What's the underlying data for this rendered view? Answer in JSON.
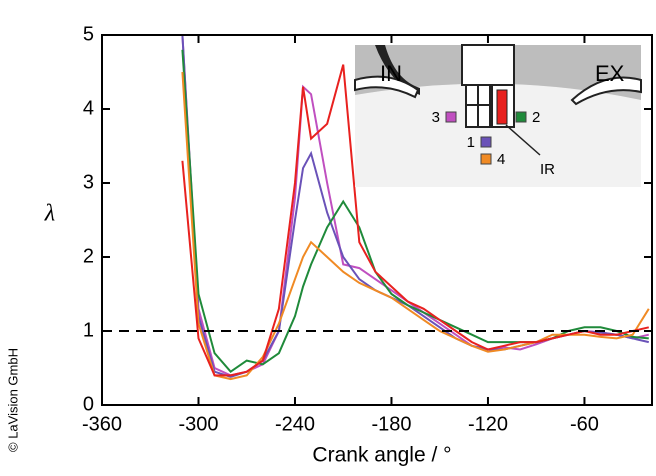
{
  "chart_data": {
    "type": "line",
    "xlabel": "Crank angle / °",
    "ylabel": "λ",
    "credit": "© LaVision GmbH",
    "inset_labels": [
      "IN",
      "EX"
    ],
    "x": [
      -310,
      -300,
      -290,
      -280,
      -270,
      -260,
      -250,
      -240,
      -235,
      -230,
      -220,
      -210,
      -200,
      -190,
      -180,
      -170,
      -160,
      -150,
      -140,
      -130,
      -120,
      -110,
      -100,
      -90,
      -80,
      -70,
      -60,
      -50,
      -40,
      -30,
      -20
    ],
    "series": [
      {
        "name": "3",
        "color": "#c04fc0",
        "values": [
          5,
          1.3,
          0.5,
          0.4,
          0.45,
          0.55,
          1.0,
          2.8,
          4.3,
          4.2,
          3.0,
          1.9,
          1.85,
          1.7,
          1.55,
          1.4,
          1.25,
          1.1,
          0.95,
          0.8,
          0.75,
          0.78,
          0.75,
          0.82,
          0.9,
          0.95,
          1.0,
          0.98,
          0.95,
          0.9,
          0.95
        ]
      },
      {
        "name": "1",
        "color": "#6a52b8",
        "values": [
          5,
          1.2,
          0.45,
          0.38,
          0.45,
          0.6,
          1.0,
          2.5,
          3.2,
          3.4,
          2.6,
          2.0,
          1.7,
          1.55,
          1.45,
          1.35,
          1.2,
          1.05,
          0.9,
          0.8,
          0.75,
          0.75,
          0.8,
          0.85,
          0.9,
          0.95,
          1.0,
          0.98,
          0.95,
          0.9,
          0.85
        ]
      },
      {
        "name": "2",
        "color": "#1f8a3a",
        "values": [
          4.8,
          1.5,
          0.7,
          0.45,
          0.6,
          0.55,
          0.7,
          1.2,
          1.6,
          1.9,
          2.4,
          2.75,
          2.4,
          1.8,
          1.5,
          1.35,
          1.25,
          1.15,
          1.05,
          0.95,
          0.85,
          0.85,
          0.85,
          0.85,
          0.9,
          1.0,
          1.05,
          1.05,
          1.0,
          0.92,
          0.9
        ]
      },
      {
        "name": "4",
        "color": "#f08a24",
        "values": [
          4.5,
          1.1,
          0.4,
          0.35,
          0.4,
          0.65,
          1.1,
          1.7,
          2.0,
          2.2,
          2.0,
          1.8,
          1.65,
          1.55,
          1.45,
          1.3,
          1.15,
          1.0,
          0.9,
          0.8,
          0.72,
          0.75,
          0.8,
          0.85,
          0.95,
          0.95,
          0.95,
          0.92,
          0.9,
          0.95,
          1.3
        ]
      },
      {
        "name": "IR",
        "color": "#e8211f",
        "values": [
          3.3,
          0.9,
          0.4,
          0.4,
          0.45,
          0.6,
          1.3,
          3.0,
          4.3,
          3.6,
          3.8,
          4.6,
          2.2,
          1.8,
          1.6,
          1.4,
          1.3,
          1.15,
          1.0,
          0.85,
          0.75,
          0.8,
          0.85,
          0.85,
          0.9,
          0.95,
          1.0,
          0.95,
          0.95,
          1.0,
          1.05
        ]
      }
    ],
    "reference_line": 1,
    "xlim": [
      -360,
      -18
    ],
    "ylim": [
      0,
      5
    ],
    "xticks": [
      -360,
      -300,
      -240,
      -180,
      -120,
      -60
    ],
    "yticks": [
      0,
      1,
      2,
      3,
      4,
      5
    ]
  }
}
